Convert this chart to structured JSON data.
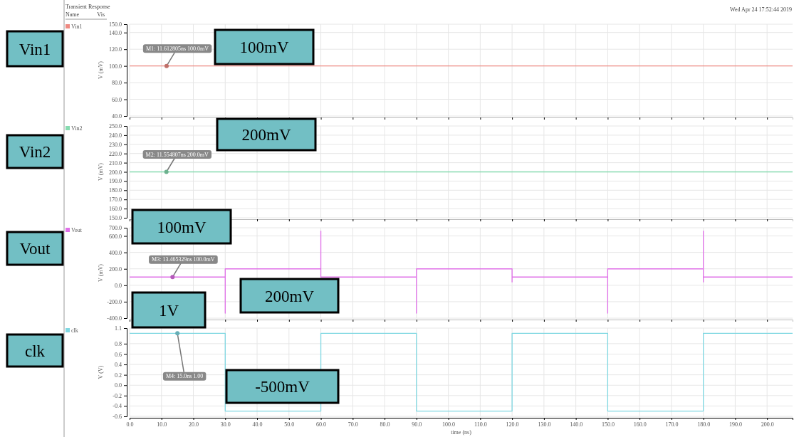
{
  "chart_data": [
    {
      "type": "line",
      "title": "Transient Response",
      "legend_title": "Name",
      "ylabel": "V (mV)",
      "legend": "left",
      "grid": true,
      "tick_labels": "y",
      "marker": "none",
      "xlim": [
        0,
        208
      ],
      "xticks": [
        {
          "value": 0,
          "label": null
        },
        {
          "value": 10,
          "label": null
        },
        {
          "value": 20,
          "label": null
        },
        {
          "value": 30,
          "label": null
        },
        {
          "value": 40,
          "label": null
        },
        {
          "value": 50,
          "label": null
        },
        {
          "value": 60,
          "label": null
        },
        {
          "value": 70,
          "label": null
        },
        {
          "value": 80,
          "label": null
        },
        {
          "value": 90,
          "label": null
        },
        {
          "value": 100,
          "label": null
        },
        {
          "value": 110,
          "label": null
        },
        {
          "value": 120,
          "label": null
        },
        {
          "value": 130,
          "label": null
        },
        {
          "value": 140,
          "label": null
        },
        {
          "value": 150,
          "label": null
        },
        {
          "value": 160,
          "label": null
        },
        {
          "value": 170,
          "label": null
        },
        {
          "value": 180,
          "label": null
        },
        {
          "value": 190,
          "label": null
        },
        {
          "value": 200,
          "label": null
        }
      ],
      "ylim": [
        40,
        150
      ],
      "yticks": [
        {
          "value": 40,
          "label": "40.0"
        },
        {
          "value": 60,
          "label": "60.0"
        },
        {
          "value": 80,
          "label": "80.0"
        },
        {
          "value": 100,
          "label": "100.0"
        },
        {
          "value": 120,
          "label": "120.0"
        },
        {
          "value": 140,
          "label": "140.0"
        },
        {
          "value": 150,
          "label": "150.0"
        }
      ],
      "series": [
        {
          "name": "Vin1",
          "color": "#ee8a82",
          "x": [
            0,
            208
          ],
          "values": [
            100,
            100
          ]
        }
      ],
      "annotations": [
        "Vis",
        "Wed Apr 24 17:52:44 2019",
        "Vin1",
        "100mV",
        {
          "text": "M1: 11.612805ns 100.0mV",
          "x": 11.61,
          "y": 100
        }
      ]
    },
    {
      "type": "line",
      "ylabel": "V (mV)",
      "legend": "left",
      "grid": true,
      "tick_labels": "y",
      "marker": "none",
      "xlim": [
        0,
        208
      ],
      "xticks": [
        {
          "value": 0,
          "label": null
        },
        {
          "value": 10,
          "label": null
        },
        {
          "value": 20,
          "label": null
        },
        {
          "value": 30,
          "label": null
        },
        {
          "value": 40,
          "label": null
        },
        {
          "value": 50,
          "label": null
        },
        {
          "value": 60,
          "label": null
        },
        {
          "value": 70,
          "label": null
        },
        {
          "value": 80,
          "label": null
        },
        {
          "value": 90,
          "label": null
        },
        {
          "value": 100,
          "label": null
        },
        {
          "value": 110,
          "label": null
        },
        {
          "value": 120,
          "label": null
        },
        {
          "value": 130,
          "label": null
        },
        {
          "value": 140,
          "label": null
        },
        {
          "value": 150,
          "label": null
        },
        {
          "value": 160,
          "label": null
        },
        {
          "value": 170,
          "label": null
        },
        {
          "value": 180,
          "label": null
        },
        {
          "value": 190,
          "label": null
        },
        {
          "value": 200,
          "label": null
        }
      ],
      "ylim": [
        150,
        250
      ],
      "yticks": [
        {
          "value": 150,
          "label": "150.0"
        },
        {
          "value": 160,
          "label": "160.0"
        },
        {
          "value": 170,
          "label": "170.0"
        },
        {
          "value": 180,
          "label": "180.0"
        },
        {
          "value": 190,
          "label": "190.0"
        },
        {
          "value": 200,
          "label": "200.0"
        },
        {
          "value": 210,
          "label": "210.0"
        },
        {
          "value": 220,
          "label": "220.0"
        },
        {
          "value": 230,
          "label": "230.0"
        },
        {
          "value": 240,
          "label": "240.0"
        },
        {
          "value": 250,
          "label": "250.0"
        }
      ],
      "series": [
        {
          "name": "Vin2",
          "color": "#86dbb0",
          "x": [
            0,
            208
          ],
          "values": [
            200,
            200
          ]
        }
      ],
      "annotations": [
        "Vin2",
        "200mV",
        {
          "text": "M2: 11.554807ns 200.0mV",
          "x": 11.55,
          "y": 200
        }
      ]
    },
    {
      "type": "line",
      "ylabel": "V (mV)",
      "legend": "left",
      "grid": true,
      "tick_labels": "y",
      "marker": "none",
      "xlim": [
        0,
        208
      ],
      "xticks": [
        {
          "value": 0,
          "label": null
        },
        {
          "value": 10,
          "label": null
        },
        {
          "value": 20,
          "label": null
        },
        {
          "value": 30,
          "label": null
        },
        {
          "value": 40,
          "label": null
        },
        {
          "value": 50,
          "label": null
        },
        {
          "value": 60,
          "label": null
        },
        {
          "value": 70,
          "label": null
        },
        {
          "value": 80,
          "label": null
        },
        {
          "value": 90,
          "label": null
        },
        {
          "value": 100,
          "label": null
        },
        {
          "value": 110,
          "label": null
        },
        {
          "value": 120,
          "label": null
        },
        {
          "value": 130,
          "label": null
        },
        {
          "value": 140,
          "label": null
        },
        {
          "value": 150,
          "label": null
        },
        {
          "value": 160,
          "label": null
        },
        {
          "value": 170,
          "label": null
        },
        {
          "value": 180,
          "label": null
        },
        {
          "value": 190,
          "label": null
        },
        {
          "value": 200,
          "label": null
        }
      ],
      "ylim": [
        -400,
        700
      ],
      "yticks": [
        {
          "value": -400,
          "label": "-400.0"
        },
        {
          "value": -200,
          "label": "-200.0"
        },
        {
          "value": 0,
          "label": "0.0"
        },
        {
          "value": 200,
          "label": "200.0"
        },
        {
          "value": 400,
          "label": "400.0"
        },
        {
          "value": 600,
          "label": "600.0"
        },
        {
          "value": 700,
          "label": "700.0"
        }
      ],
      "series": [
        {
          "name": "Vout",
          "color": "#e070e8",
          "x": [
            0,
            30,
            30,
            30,
            60,
            60,
            60,
            90,
            90,
            90,
            120,
            120,
            120,
            150,
            150,
            150,
            180,
            180,
            180,
            180,
            208
          ],
          "values": [
            100,
            100,
            -340,
            200,
            200,
            660,
            100,
            100,
            -340,
            200,
            200,
            40,
            100,
            100,
            -340,
            200,
            200,
            660,
            40,
            100,
            100
          ]
        }
      ],
      "annotations": [
        "Vout",
        "100mV",
        "200mV",
        {
          "text": "M3: 13.465329ns 100.0mV",
          "x": 13.47,
          "y": 100
        }
      ]
    },
    {
      "type": "line",
      "ylabel": "V (V)",
      "xlabel": "time (ns)",
      "legend": "left",
      "grid": true,
      "marker": "none",
      "xlim": [
        0,
        208
      ],
      "xticks": [
        {
          "value": 0,
          "label": "0.0"
        },
        {
          "value": 10,
          "label": "10.0"
        },
        {
          "value": 20,
          "label": "20.0"
        },
        {
          "value": 30,
          "label": "30.0"
        },
        {
          "value": 40,
          "label": "40.0"
        },
        {
          "value": 50,
          "label": "50.0"
        },
        {
          "value": 60,
          "label": "60.0"
        },
        {
          "value": 70,
          "label": "70.0"
        },
        {
          "value": 80,
          "label": "80.0"
        },
        {
          "value": 90,
          "label": "90.0"
        },
        {
          "value": 100,
          "label": "100.0"
        },
        {
          "value": 110,
          "label": "110.0"
        },
        {
          "value": 120,
          "label": "120.0"
        },
        {
          "value": 130,
          "label": "130.0"
        },
        {
          "value": 140,
          "label": "140.0"
        },
        {
          "value": 150,
          "label": "150.0"
        },
        {
          "value": 160,
          "label": "160.0"
        },
        {
          "value": 170,
          "label": "170.0"
        },
        {
          "value": 180,
          "label": "180.0"
        },
        {
          "value": 190,
          "label": "190.0"
        },
        {
          "value": 200,
          "label": "200.0"
        }
      ],
      "ylim": [
        -0.6,
        1.1
      ],
      "yticks": [
        -0.6,
        -0.4,
        -0.2,
        {
          "value": 0,
          "label": "0.0"
        },
        0.2,
        0.4,
        0.6,
        0.8,
        1.1
      ],
      "series": [
        {
          "name": "clk",
          "color": "#80d8e2",
          "x": [
            0,
            30,
            30,
            60,
            60,
            90,
            90,
            120,
            120,
            150,
            150,
            180,
            180,
            208
          ],
          "values": [
            1,
            1,
            -0.5,
            -0.5,
            1,
            1,
            -0.5,
            -0.5,
            1,
            1,
            -0.5,
            -0.5,
            1,
            1
          ]
        }
      ],
      "annotations": [
        "clk",
        "1V",
        "-500mV",
        {
          "text": "M4: 15.0ns 1.00",
          "x": 15.0,
          "y": 1.0
        }
      ]
    }
  ]
}
